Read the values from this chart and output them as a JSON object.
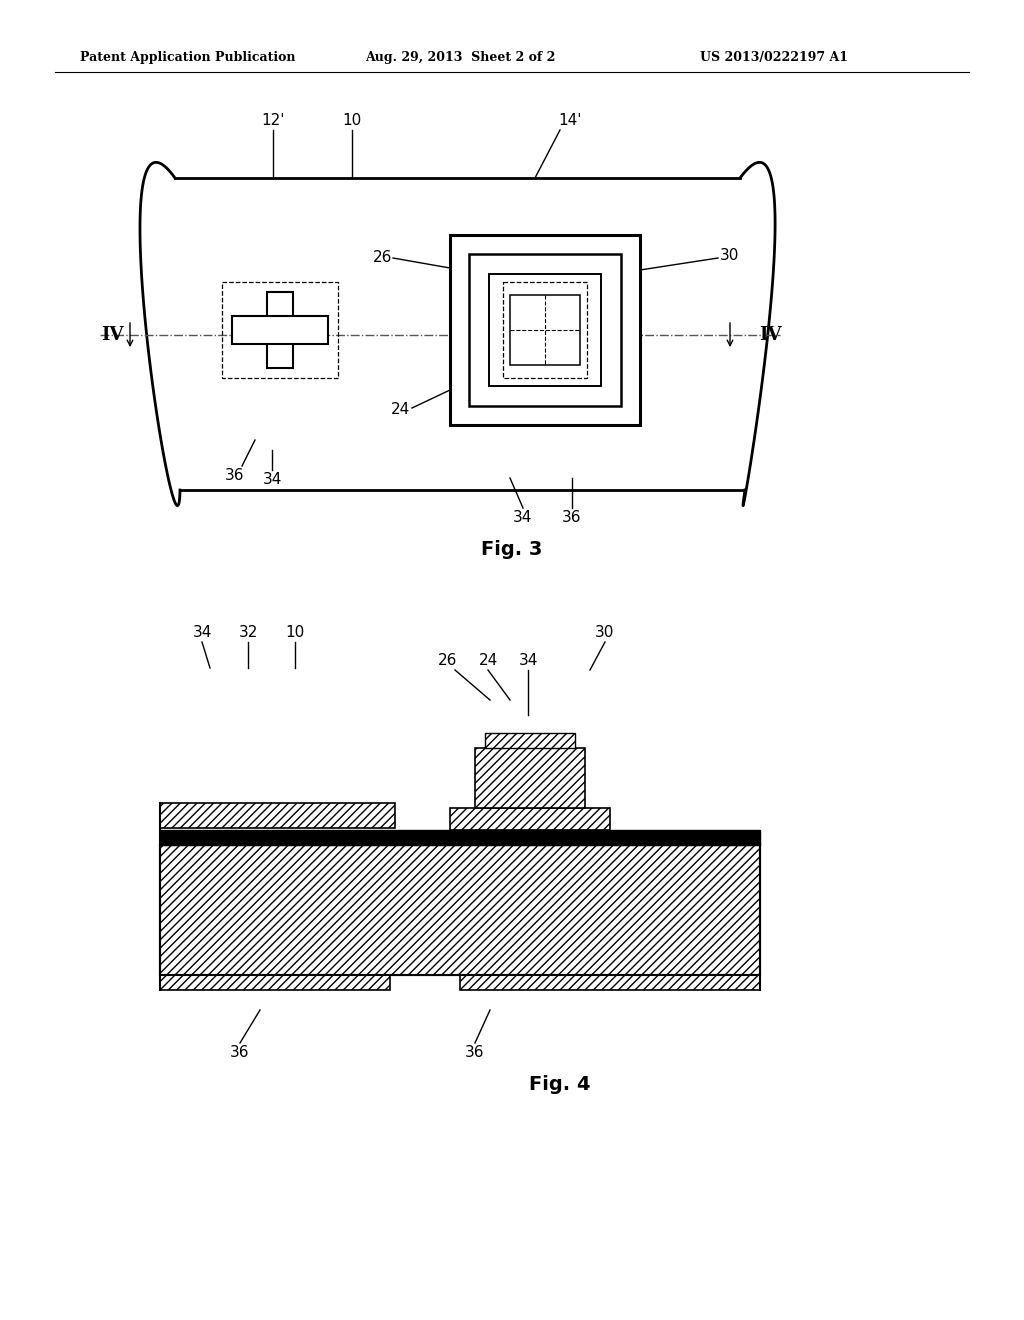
{
  "bg_color": "#ffffff",
  "line_color": "#000000",
  "header_left": "Patent Application Publication",
  "header_mid": "Aug. 29, 2013  Sheet 2 of 2",
  "header_right": "US 2013/0222197 A1",
  "fig3_label": "Fig. 3",
  "fig4_label": "Fig. 4"
}
